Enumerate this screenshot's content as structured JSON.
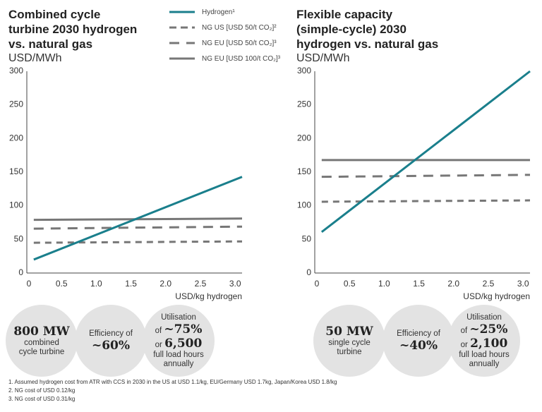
{
  "chart_data": [
    {
      "type": "line",
      "title": "Combined cycle turbine 2030 hydrogen vs. natural gas",
      "ylabel": "USD/MWh",
      "xlabel": "USD/kg hydrogen",
      "xlim": [
        0,
        3.1
      ],
      "ylim": [
        0,
        300
      ],
      "xticks": [
        "0",
        "0.5",
        "1.0",
        "1.5",
        "2.0",
        "2.5",
        "3.0"
      ],
      "yticks": [
        "0",
        "50",
        "100",
        "150",
        "200",
        "250",
        "300"
      ],
      "series": [
        {
          "name": "Hydrogen¹",
          "style": "solid",
          "color": "#1a7f8c",
          "x": [
            0.1,
            3.1
          ],
          "y": [
            20,
            143
          ]
        },
        {
          "name": "NG US [USD 50/t CO₂]²",
          "style": "dashed-short",
          "color": "#777777",
          "x": [
            0.1,
            3.1
          ],
          "y": [
            45,
            47
          ]
        },
        {
          "name": "NG EU [USD 50/t CO₂]³",
          "style": "dashed-long",
          "color": "#777777",
          "x": [
            0.1,
            3.1
          ],
          "y": [
            66,
            69
          ]
        },
        {
          "name": "NG EU [USD 100/t CO₂]³",
          "style": "solid",
          "color": "#777777",
          "x": [
            0.1,
            3.1
          ],
          "y": [
            79,
            81
          ]
        }
      ]
    },
    {
      "type": "line",
      "title": "Flexible capacity (simple-cycle) 2030 hydrogen vs. natural gas",
      "ylabel": "USD/MWh",
      "xlabel": "USD/kg hydrogen",
      "xlim": [
        0,
        3.1
      ],
      "ylim": [
        0,
        300
      ],
      "xticks": [
        "0",
        "0.5",
        "1.0",
        "1.5",
        "2.0",
        "2.5",
        "3.0"
      ],
      "yticks": [
        "0",
        "50",
        "100",
        "150",
        "200",
        "250",
        "300"
      ],
      "series": [
        {
          "name": "Hydrogen¹",
          "style": "solid",
          "color": "#1a7f8c",
          "x": [
            0.1,
            3.1
          ],
          "y": [
            61,
            300
          ]
        },
        {
          "name": "NG US [USD 50/t CO₂]²",
          "style": "dashed-short",
          "color": "#777777",
          "x": [
            0.1,
            3.1
          ],
          "y": [
            106,
            108
          ]
        },
        {
          "name": "NG EU [USD 50/t CO₂]³",
          "style": "dashed-long",
          "color": "#777777",
          "x": [
            0.1,
            3.1
          ],
          "y": [
            143,
            146
          ]
        },
        {
          "name": "NG EU [USD 100/t CO₂]³",
          "style": "solid",
          "color": "#777777",
          "x": [
            0.1,
            3.1
          ],
          "y": [
            168,
            168
          ]
        }
      ]
    }
  ],
  "titles": {
    "left_l1": "Combined cycle",
    "left_l2": "turbine 2030 hydrogen",
    "left_l3": "vs. natural gas",
    "right_l1": "Flexible capacity",
    "right_l2": "(simple-cycle) 2030",
    "right_l3": "hydrogen vs. natural gas",
    "unit": "USD/MWh"
  },
  "circles": {
    "left": [
      {
        "big": "800 MW",
        "small": "combined cycle turbine"
      },
      {
        "pre": "Efficiency of",
        "big": "~60%"
      },
      {
        "pre": "Utilisation",
        "mid1": "of",
        "big1": "~75%",
        "mid2": "or",
        "big2": "6,500",
        "post": "full load hours annually"
      }
    ],
    "right": [
      {
        "big": "50 MW",
        "small": "single cycle turbine"
      },
      {
        "pre": "Efficiency of",
        "big": "~40%"
      },
      {
        "pre": "Utilisation",
        "mid1": "of",
        "big1": "~25%",
        "mid2": "or",
        "big2": "2,100",
        "post": "full load hours annually"
      }
    ]
  },
  "notes": [
    "1.  Assumed hydrogen cost from ATR with CCS in 2030 in the US at USD 1.1/kg, EU/Germany USD 1.7kg, Japan/Korea USD 1.8/kg",
    "2.  NG cost of USD 0.12/kg",
    "3.  NG cost of USD 0.31/kg"
  ]
}
